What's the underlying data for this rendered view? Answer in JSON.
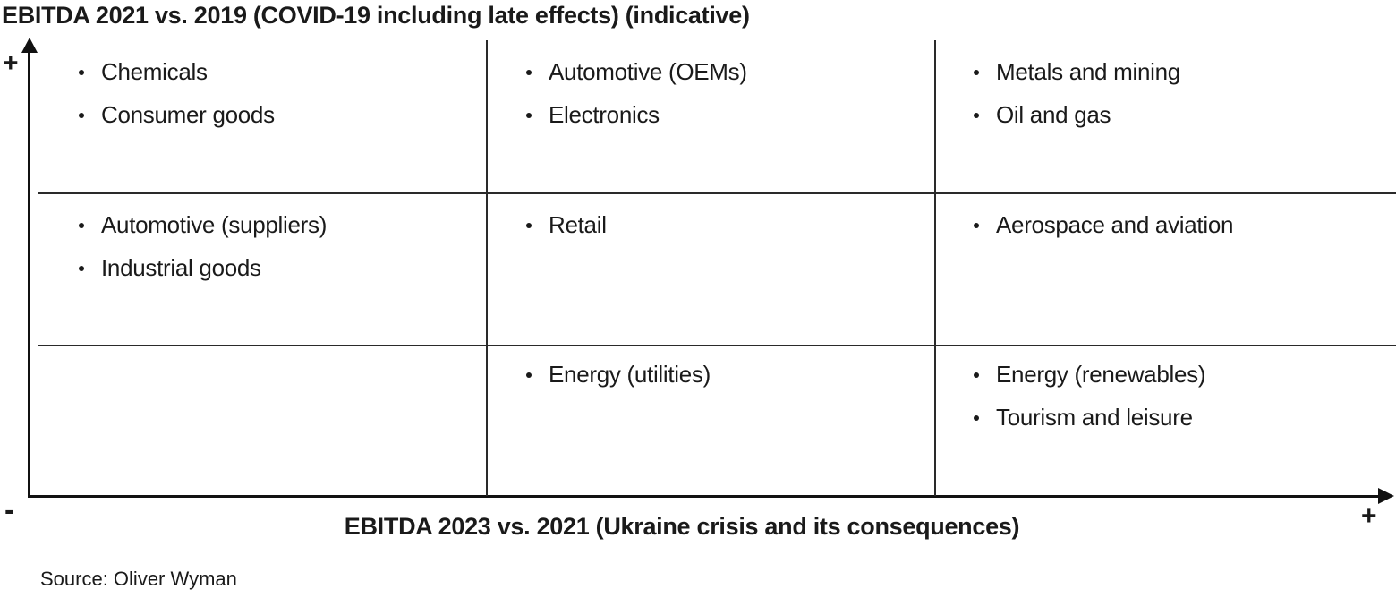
{
  "source": "Source: Oliver Wyman",
  "axis_symbols": {
    "y_top": "+",
    "origin": "-",
    "x_right": "+"
  },
  "colors": {
    "background": "#ffffff",
    "text": "#1a1a1a",
    "axis": "#111111",
    "gridline": "#2a2a2a"
  },
  "chart_data": {
    "type": "table",
    "title": "EBITDA 2021 vs. 2019 (COVID-19 including late effects) (indicative)",
    "xlabel": "EBITDA 2023 vs. 2021 (Ukraine crisis and its consequences)",
    "ylabel": "EBITDA 2021 vs. 2019 (COVID-19 including late effects) (indicative)",
    "x_axis_min_label": "-",
    "x_axis_max_label": "+",
    "y_axis_min_label": "-",
    "y_axis_max_label": "+",
    "grid": {
      "rows": 3,
      "cols": 3,
      "grid_lines": "on",
      "layout": "row 1 = top (high EBITDA 2021 vs. 2019), col 1 = left (low EBITDA 2023 vs. 2021)"
    },
    "cells": [
      {
        "row": 1,
        "col": 1,
        "items": [
          "Chemicals",
          "Consumer goods"
        ]
      },
      {
        "row": 1,
        "col": 2,
        "items": [
          "Automotive (OEMs)",
          "Electronics"
        ]
      },
      {
        "row": 1,
        "col": 3,
        "items": [
          "Metals and mining",
          "Oil and gas"
        ]
      },
      {
        "row": 2,
        "col": 1,
        "items": [
          "Automotive (suppliers)",
          "Industrial goods"
        ]
      },
      {
        "row": 2,
        "col": 2,
        "items": [
          "Retail"
        ]
      },
      {
        "row": 2,
        "col": 3,
        "items": [
          "Aerospace and aviation"
        ]
      },
      {
        "row": 3,
        "col": 1,
        "items": []
      },
      {
        "row": 3,
        "col": 2,
        "items": [
          "Energy (utilities)"
        ]
      },
      {
        "row": 3,
        "col": 3,
        "items": [
          "Energy (renewables)",
          "Tourism and leisure"
        ]
      }
    ]
  }
}
